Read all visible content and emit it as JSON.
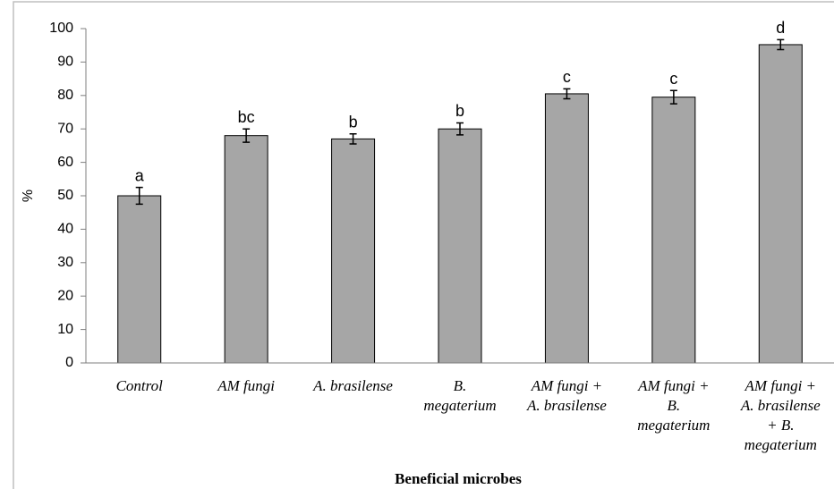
{
  "chart_data": {
    "type": "bar",
    "categories": [
      [
        "Control"
      ],
      [
        "AM fungi"
      ],
      [
        "A. brasilense"
      ],
      [
        "B.",
        "megaterium"
      ],
      [
        "AM fungi +",
        "A. brasilense"
      ],
      [
        "AM fungi +",
        "B.",
        "megaterium"
      ],
      [
        "AM fungi +",
        "A. brasilense",
        "+ B.",
        "megaterium"
      ]
    ],
    "values": [
      50,
      68,
      67,
      70,
      80.5,
      79.5,
      95.2
    ],
    "errors": [
      2.5,
      2,
      1.5,
      1.8,
      1.5,
      2,
      1.5
    ],
    "annotations": [
      "a",
      "bc",
      "b",
      "b",
      "c",
      "c",
      "d"
    ],
    "color": "#a6a6a6",
    "ylabel": "%",
    "xlabel": "Beneficial microbes",
    "ylim": [
      0,
      100
    ],
    "yticks": [
      0,
      10,
      20,
      30,
      40,
      50,
      60,
      70,
      80,
      90,
      100
    ]
  }
}
